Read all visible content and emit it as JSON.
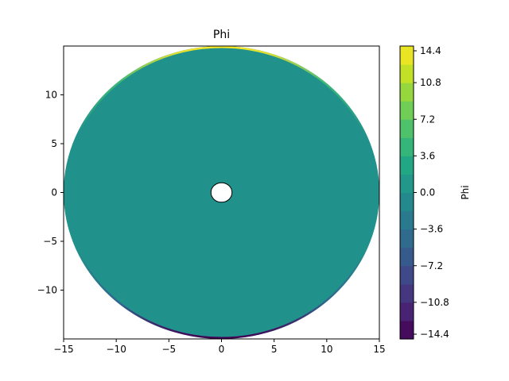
{
  "chart_data": {
    "type": "heatmap",
    "title": "Phi",
    "xlabel": "",
    "ylabel": "",
    "xlim": [
      -15,
      15
    ],
    "ylim": [
      -15,
      15
    ],
    "x_ticks": [
      -15,
      -10,
      -5,
      0,
      5,
      10,
      15
    ],
    "y_ticks": [
      -10,
      -5,
      0,
      5,
      10
    ],
    "x_tick_labels": [
      "−15",
      "−10",
      "−5",
      "0",
      "5",
      "10",
      "15"
    ],
    "y_tick_labels": [
      "−10",
      "−5",
      "0",
      "5",
      "10"
    ],
    "field": {
      "shape": "annulus",
      "center": [
        0,
        0
      ],
      "outer_radius": 15,
      "inner_radius": 1,
      "interior_value": 0.0,
      "top_rim_value": 14.4,
      "bottom_rim_value": -14.4
    },
    "colorbar": {
      "label": "Phi",
      "range": [
        -14.4,
        14.4
      ],
      "ticks": [
        -14.4,
        -10.8,
        -7.2,
        -3.6,
        0.0,
        3.6,
        7.2,
        10.8,
        14.4
      ],
      "tick_labels": [
        "−14.4",
        "−10.8",
        "−7.2",
        "−3.6",
        "0.0",
        "3.6",
        "7.2",
        "10.8",
        "14.4"
      ],
      "colormap": "viridis",
      "levels": 16
    },
    "grid": false,
    "colors": {
      "viridis": [
        "#440154",
        "#482475",
        "#414487",
        "#355f8d",
        "#2a788e",
        "#21918c",
        "#22a884",
        "#44bf70",
        "#7ad151",
        "#bddf26",
        "#fde725"
      ],
      "interior": "#21918c",
      "hole": "#ffffff"
    }
  }
}
